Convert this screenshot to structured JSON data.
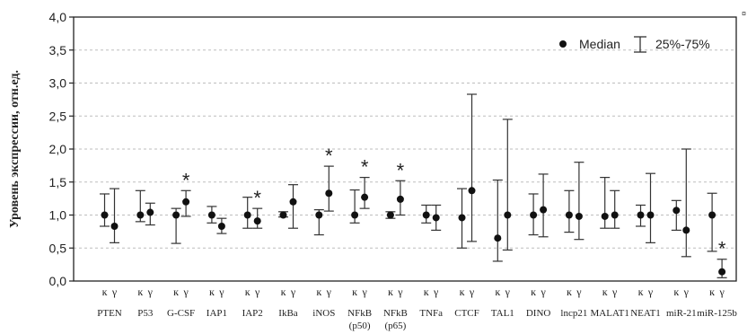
{
  "chart_data": {
    "type": "scatter",
    "ylabel": "Уровень экспрессии, отн.ед.",
    "ylim": [
      0.0,
      4.0
    ],
    "yticks": [
      "0,0",
      "0,5",
      "1,0",
      "1,5",
      "2,0",
      "2,5",
      "3,0",
      "3,5",
      "4,0"
    ],
    "grid": "horizontal",
    "legend": {
      "position": "top-right",
      "median_label": "Median",
      "range_label": "25%-75%"
    },
    "sub_labels": [
      "к",
      "γ"
    ],
    "corner_mark": "¤",
    "categories": [
      {
        "name": "PTEN",
        "name2": "",
        "k": {
          "median": 1.0,
          "q1": 0.83,
          "q3": 1.32
        },
        "g": {
          "median": 0.83,
          "q1": 0.58,
          "q3": 1.4
        },
        "star": ""
      },
      {
        "name": "P53",
        "name2": "",
        "k": {
          "median": 1.0,
          "q1": 0.9,
          "q3": 1.37
        },
        "g": {
          "median": 1.04,
          "q1": 0.85,
          "q3": 1.18
        },
        "star": ""
      },
      {
        "name": "G-CSF",
        "name2": "",
        "k": {
          "median": 1.0,
          "q1": 0.57,
          "q3": 1.1
        },
        "g": {
          "median": 1.2,
          "q1": 0.98,
          "q3": 1.37
        },
        "star": "*"
      },
      {
        "name": "IAP1",
        "name2": "",
        "k": {
          "median": 1.0,
          "q1": 0.88,
          "q3": 1.13
        },
        "g": {
          "median": 0.83,
          "q1": 0.72,
          "q3": 0.95
        },
        "star": ""
      },
      {
        "name": "IAP2",
        "name2": "",
        "k": {
          "median": 1.0,
          "q1": 0.8,
          "q3": 1.27
        },
        "g": {
          "median": 0.91,
          "q1": 0.8,
          "q3": 1.1
        },
        "star": "*"
      },
      {
        "name": "IkBa",
        "name2": "",
        "k": {
          "median": 1.0,
          "q1": 0.97,
          "q3": 1.05
        },
        "g": {
          "median": 1.2,
          "q1": 0.8,
          "q3": 1.46
        },
        "star": ""
      },
      {
        "name": "iNOS",
        "name2": "",
        "k": {
          "median": 1.0,
          "q1": 0.7,
          "q3": 1.08
        },
        "g": {
          "median": 1.33,
          "q1": 1.06,
          "q3": 1.74
        },
        "star": "*"
      },
      {
        "name": "NFkB",
        "name2": "(p50)",
        "k": {
          "median": 1.0,
          "q1": 0.88,
          "q3": 1.38
        },
        "g": {
          "median": 1.27,
          "q1": 1.1,
          "q3": 1.57
        },
        "star": "*"
      },
      {
        "name": "NFkB",
        "name2": "(p65)",
        "k": {
          "median": 1.0,
          "q1": 0.95,
          "q3": 1.05
        },
        "g": {
          "median": 1.24,
          "q1": 1.0,
          "q3": 1.52
        },
        "star": "*"
      },
      {
        "name": "TNFa",
        "name2": "",
        "k": {
          "median": 1.0,
          "q1": 0.88,
          "q3": 1.15
        },
        "g": {
          "median": 0.96,
          "q1": 0.77,
          "q3": 1.15
        },
        "star": ""
      },
      {
        "name": "CTCF",
        "name2": "",
        "k": {
          "median": 0.96,
          "q1": 0.5,
          "q3": 1.4
        },
        "g": {
          "median": 1.37,
          "q1": 0.6,
          "q3": 2.83
        },
        "star": ""
      },
      {
        "name": "TAL1",
        "name2": "",
        "k": {
          "median": 0.65,
          "q1": 0.3,
          "q3": 1.53
        },
        "g": {
          "median": 1.0,
          "q1": 0.47,
          "q3": 2.45
        },
        "star": ""
      },
      {
        "name": "DINO",
        "name2": "",
        "k": {
          "median": 1.0,
          "q1": 0.7,
          "q3": 1.32
        },
        "g": {
          "median": 1.08,
          "q1": 0.67,
          "q3": 1.62
        },
        "star": ""
      },
      {
        "name": "lncp21",
        "name2": "",
        "k": {
          "median": 1.0,
          "q1": 0.74,
          "q3": 1.37
        },
        "g": {
          "median": 0.98,
          "q1": 0.63,
          "q3": 1.8
        },
        "star": ""
      },
      {
        "name": "MALAT1",
        "name2": "",
        "k": {
          "median": 0.98,
          "q1": 0.8,
          "q3": 1.57
        },
        "g": {
          "median": 1.0,
          "q1": 0.8,
          "q3": 1.37
        },
        "star": ""
      },
      {
        "name": "NEAT1",
        "name2": "",
        "k": {
          "median": 1.0,
          "q1": 0.83,
          "q3": 1.15
        },
        "g": {
          "median": 1.0,
          "q1": 0.58,
          "q3": 1.63
        },
        "star": ""
      },
      {
        "name": "miR-21",
        "name2": "",
        "k": {
          "median": 1.07,
          "q1": 0.77,
          "q3": 1.22
        },
        "g": {
          "median": 0.77,
          "q1": 0.37,
          "q3": 2.0
        },
        "star": ""
      },
      {
        "name": "miR-125b",
        "name2": "",
        "k": {
          "median": 1.0,
          "q1": 0.45,
          "q3": 1.33
        },
        "g": {
          "median": 0.14,
          "q1": 0.05,
          "q3": 0.33
        },
        "star": "*"
      }
    ]
  }
}
